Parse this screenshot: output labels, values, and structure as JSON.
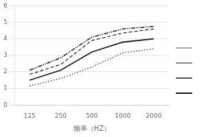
{
  "chart_data": {
    "type": "line",
    "x": [
      125,
      250,
      500,
      1000,
      2000
    ],
    "series": [
      {
        "line_style": "dotted",
        "values": [
          1.15,
          1.6,
          2.3,
          3.15,
          3.4
        ]
      },
      {
        "line_style": "dashed",
        "values": [
          1.85,
          2.45,
          3.9,
          4.35,
          4.6
        ]
      },
      {
        "line_style": "dash_dot",
        "values": [
          2.1,
          2.85,
          4.1,
          4.6,
          4.75
        ]
      },
      {
        "line_style": "solid",
        "values": [
          1.5,
          2.1,
          3.2,
          3.8,
          4.0
        ]
      }
    ],
    "color": "#1a1a1a",
    "xlabel": "频率（HZ）",
    "log": "x",
    "xlim": [
      90,
      2800
    ],
    "xticks": [
      125,
      250,
      500,
      1000,
      2000
    ],
    "ylim": [
      0,
      6
    ],
    "yticks": [
      0,
      1,
      2,
      3,
      4,
      5,
      6
    ],
    "grid": "y",
    "legend": "right"
  }
}
